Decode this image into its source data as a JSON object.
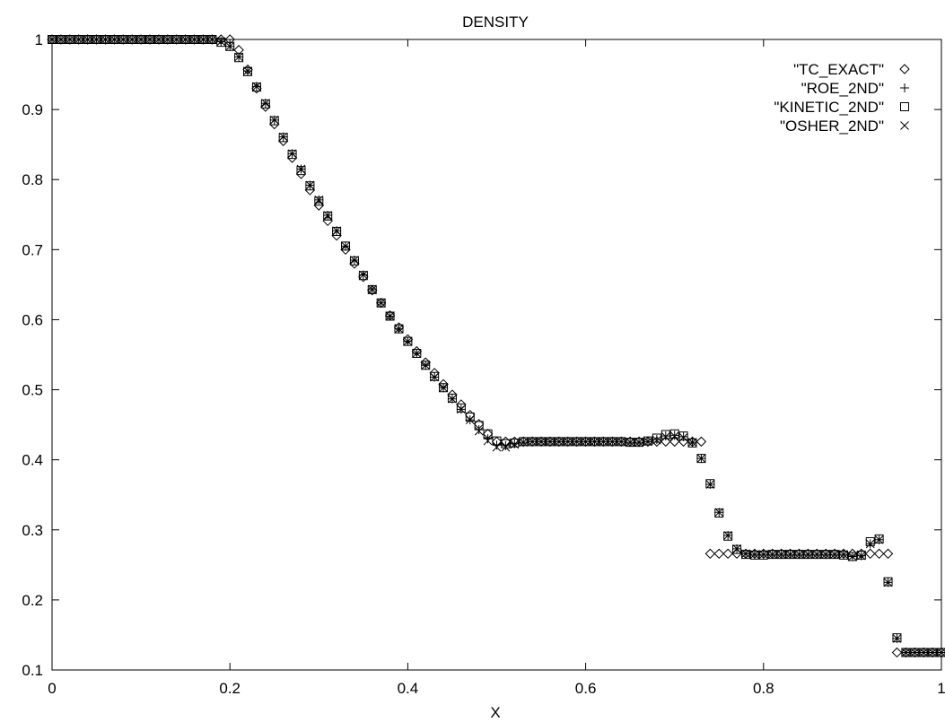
{
  "chart_data": {
    "type": "scatter",
    "title": "DENSITY",
    "xlabel": "X",
    "ylabel": "",
    "xlim": [
      0,
      1
    ],
    "ylim": [
      0.1,
      1
    ],
    "xticks": [
      "0",
      "0.2",
      "0.4",
      "0.6",
      "0.8",
      "1"
    ],
    "yticks": [
      "0.1",
      "0.2",
      "0.3",
      "0.4",
      "0.5",
      "0.6",
      "0.7",
      "0.8",
      "0.9",
      "1"
    ],
    "legend_position": "top-right",
    "grid": false,
    "series": [
      {
        "name": "\"TC_EXACT\"",
        "marker": "diamond",
        "x": [
          0.0,
          0.01,
          0.02,
          0.03,
          0.04,
          0.05,
          0.06,
          0.07,
          0.08,
          0.09,
          0.1,
          0.11,
          0.12,
          0.13,
          0.14,
          0.15,
          0.16,
          0.17,
          0.18,
          0.19,
          0.2,
          0.21,
          0.22,
          0.23,
          0.24,
          0.25,
          0.26,
          0.27,
          0.28,
          0.29,
          0.3,
          0.31,
          0.32,
          0.33,
          0.34,
          0.35,
          0.36,
          0.37,
          0.38,
          0.39,
          0.4,
          0.41,
          0.42,
          0.43,
          0.44,
          0.45,
          0.46,
          0.47,
          0.48,
          0.49,
          0.5,
          0.51,
          0.52,
          0.53,
          0.54,
          0.55,
          0.56,
          0.57,
          0.58,
          0.59,
          0.6,
          0.61,
          0.62,
          0.63,
          0.64,
          0.65,
          0.66,
          0.67,
          0.68,
          0.69,
          0.7,
          0.71,
          0.72,
          0.73,
          0.74,
          0.75,
          0.76,
          0.77,
          0.78,
          0.79,
          0.8,
          0.81,
          0.82,
          0.83,
          0.84,
          0.85,
          0.86,
          0.87,
          0.88,
          0.89,
          0.9,
          0.91,
          0.92,
          0.93,
          0.94,
          0.95,
          0.96,
          0.97,
          0.98,
          0.99,
          1.0
        ],
        "y": [
          1,
          1,
          1,
          1,
          1,
          1,
          1,
          1,
          1,
          1,
          1,
          1,
          1,
          1,
          1,
          1,
          1,
          1,
          1,
          1,
          1,
          0.985,
          0.957,
          0.93,
          0.904,
          0.879,
          0.855,
          0.831,
          0.808,
          0.785,
          0.763,
          0.741,
          0.72,
          0.7,
          0.68,
          0.661,
          0.642,
          0.624,
          0.606,
          0.589,
          0.572,
          0.555,
          0.539,
          0.524,
          0.508,
          0.493,
          0.479,
          0.464,
          0.451,
          0.437,
          0.426,
          0.426,
          0.426,
          0.426,
          0.426,
          0.426,
          0.426,
          0.426,
          0.426,
          0.426,
          0.426,
          0.426,
          0.426,
          0.426,
          0.426,
          0.426,
          0.426,
          0.426,
          0.426,
          0.426,
          0.426,
          0.426,
          0.426,
          0.426,
          0.266,
          0.266,
          0.266,
          0.266,
          0.266,
          0.266,
          0.266,
          0.266,
          0.266,
          0.266,
          0.266,
          0.266,
          0.266,
          0.266,
          0.266,
          0.266,
          0.266,
          0.266,
          0.266,
          0.266,
          0.266,
          0.125,
          0.125,
          0.125,
          0.125,
          0.125,
          0.125
        ]
      },
      {
        "name": "\"ROE_2ND\"",
        "marker": "plus",
        "x": [
          0.0,
          0.01,
          0.02,
          0.03,
          0.04,
          0.05,
          0.06,
          0.07,
          0.08,
          0.09,
          0.1,
          0.11,
          0.12,
          0.13,
          0.14,
          0.15,
          0.16,
          0.17,
          0.18,
          0.19,
          0.2,
          0.21,
          0.22,
          0.23,
          0.24,
          0.25,
          0.26,
          0.27,
          0.28,
          0.29,
          0.3,
          0.31,
          0.32,
          0.33,
          0.34,
          0.35,
          0.36,
          0.37,
          0.38,
          0.39,
          0.4,
          0.41,
          0.42,
          0.43,
          0.44,
          0.45,
          0.46,
          0.47,
          0.48,
          0.49,
          0.5,
          0.51,
          0.52,
          0.53,
          0.54,
          0.55,
          0.56,
          0.57,
          0.58,
          0.59,
          0.6,
          0.61,
          0.62,
          0.63,
          0.64,
          0.65,
          0.66,
          0.67,
          0.68,
          0.69,
          0.7,
          0.71,
          0.72,
          0.73,
          0.74,
          0.75,
          0.76,
          0.77,
          0.78,
          0.79,
          0.8,
          0.81,
          0.82,
          0.83,
          0.84,
          0.85,
          0.86,
          0.87,
          0.88,
          0.89,
          0.9,
          0.91,
          0.92,
          0.93,
          0.94,
          0.95,
          0.96,
          0.97,
          0.98,
          0.99,
          1.0
        ],
        "y": [
          1,
          1,
          1,
          1,
          1,
          1,
          1,
          1,
          1,
          1,
          1,
          1,
          1,
          1,
          1,
          1,
          1,
          1,
          1,
          0.997,
          0.99,
          0.975,
          0.955,
          0.933,
          0.909,
          0.885,
          0.861,
          0.837,
          0.815,
          0.792,
          0.771,
          0.749,
          0.727,
          0.705,
          0.685,
          0.664,
          0.643,
          0.624,
          0.605,
          0.587,
          0.569,
          0.552,
          0.535,
          0.518,
          0.503,
          0.487,
          0.472,
          0.457,
          0.443,
          0.43,
          0.421,
          0.42,
          0.423,
          0.425,
          0.426,
          0.426,
          0.426,
          0.426,
          0.426,
          0.426,
          0.426,
          0.426,
          0.426,
          0.426,
          0.426,
          0.425,
          0.425,
          0.426,
          0.429,
          0.434,
          0.435,
          0.433,
          0.425,
          0.402,
          0.365,
          0.325,
          0.292,
          0.273,
          0.266,
          0.265,
          0.265,
          0.265,
          0.265,
          0.265,
          0.265,
          0.265,
          0.265,
          0.265,
          0.265,
          0.265,
          0.262,
          0.263,
          0.28,
          0.286,
          0.225,
          0.145,
          0.125,
          0.125,
          0.125,
          0.125,
          0.125
        ]
      },
      {
        "name": "\"KINETIC_2ND\"",
        "marker": "square",
        "x": [
          0.0,
          0.01,
          0.02,
          0.03,
          0.04,
          0.05,
          0.06,
          0.07,
          0.08,
          0.09,
          0.1,
          0.11,
          0.12,
          0.13,
          0.14,
          0.15,
          0.16,
          0.17,
          0.18,
          0.19,
          0.2,
          0.21,
          0.22,
          0.23,
          0.24,
          0.25,
          0.26,
          0.27,
          0.28,
          0.29,
          0.3,
          0.31,
          0.32,
          0.33,
          0.34,
          0.35,
          0.36,
          0.37,
          0.38,
          0.39,
          0.4,
          0.41,
          0.42,
          0.43,
          0.44,
          0.45,
          0.46,
          0.47,
          0.48,
          0.49,
          0.5,
          0.51,
          0.52,
          0.53,
          0.54,
          0.55,
          0.56,
          0.57,
          0.58,
          0.59,
          0.6,
          0.61,
          0.62,
          0.63,
          0.64,
          0.65,
          0.66,
          0.67,
          0.68,
          0.69,
          0.7,
          0.71,
          0.72,
          0.73,
          0.74,
          0.75,
          0.76,
          0.77,
          0.78,
          0.79,
          0.8,
          0.81,
          0.82,
          0.83,
          0.84,
          0.85,
          0.86,
          0.87,
          0.88,
          0.89,
          0.9,
          0.91,
          0.92,
          0.93,
          0.94,
          0.95,
          0.96,
          0.97,
          0.98,
          0.99,
          1.0
        ],
        "y": [
          1,
          1,
          1,
          1,
          1,
          1,
          1,
          1,
          1,
          1,
          1,
          1,
          1,
          1,
          1,
          1,
          1,
          1,
          1,
          0.996,
          0.99,
          0.974,
          0.954,
          0.932,
          0.908,
          0.884,
          0.86,
          0.836,
          0.813,
          0.791,
          0.769,
          0.748,
          0.726,
          0.705,
          0.684,
          0.663,
          0.643,
          0.624,
          0.605,
          0.587,
          0.569,
          0.552,
          0.535,
          0.519,
          0.503,
          0.488,
          0.474,
          0.461,
          0.449,
          0.437,
          0.427,
          0.423,
          0.424,
          0.426,
          0.426,
          0.426,
          0.426,
          0.426,
          0.426,
          0.426,
          0.426,
          0.426,
          0.426,
          0.426,
          0.426,
          0.425,
          0.425,
          0.427,
          0.431,
          0.436,
          0.437,
          0.434,
          0.424,
          0.402,
          0.366,
          0.324,
          0.291,
          0.272,
          0.265,
          0.264,
          0.264,
          0.265,
          0.265,
          0.265,
          0.265,
          0.265,
          0.265,
          0.265,
          0.265,
          0.264,
          0.262,
          0.264,
          0.283,
          0.287,
          0.226,
          0.146,
          0.125,
          0.125,
          0.125,
          0.125,
          0.125
        ]
      },
      {
        "name": "\"OSHER_2ND\"",
        "marker": "cross",
        "x": [
          0.0,
          0.01,
          0.02,
          0.03,
          0.04,
          0.05,
          0.06,
          0.07,
          0.08,
          0.09,
          0.1,
          0.11,
          0.12,
          0.13,
          0.14,
          0.15,
          0.16,
          0.17,
          0.18,
          0.19,
          0.2,
          0.21,
          0.22,
          0.23,
          0.24,
          0.25,
          0.26,
          0.27,
          0.28,
          0.29,
          0.3,
          0.31,
          0.32,
          0.33,
          0.34,
          0.35,
          0.36,
          0.37,
          0.38,
          0.39,
          0.4,
          0.41,
          0.42,
          0.43,
          0.44,
          0.45,
          0.46,
          0.47,
          0.48,
          0.49,
          0.5,
          0.51,
          0.52,
          0.53,
          0.54,
          0.55,
          0.56,
          0.57,
          0.58,
          0.59,
          0.6,
          0.61,
          0.62,
          0.63,
          0.64,
          0.65,
          0.66,
          0.67,
          0.68,
          0.69,
          0.7,
          0.71,
          0.72,
          0.73,
          0.74,
          0.75,
          0.76,
          0.77,
          0.78,
          0.79,
          0.8,
          0.81,
          0.82,
          0.83,
          0.84,
          0.85,
          0.86,
          0.87,
          0.88,
          0.89,
          0.9,
          0.91,
          0.92,
          0.93,
          0.94,
          0.95,
          0.96,
          0.97,
          0.98,
          0.99,
          1.0
        ],
        "y": [
          1,
          1,
          1,
          1,
          1,
          1,
          1,
          1,
          1,
          1,
          1,
          1,
          1,
          1,
          1,
          1,
          1,
          1,
          1,
          0.997,
          0.99,
          0.975,
          0.955,
          0.933,
          0.909,
          0.885,
          0.861,
          0.837,
          0.815,
          0.792,
          0.771,
          0.749,
          0.727,
          0.705,
          0.685,
          0.664,
          0.643,
          0.624,
          0.605,
          0.587,
          0.569,
          0.552,
          0.535,
          0.518,
          0.503,
          0.487,
          0.472,
          0.457,
          0.441,
          0.427,
          0.418,
          0.418,
          0.422,
          0.425,
          0.426,
          0.426,
          0.426,
          0.426,
          0.426,
          0.426,
          0.426,
          0.426,
          0.426,
          0.426,
          0.426,
          0.425,
          0.425,
          0.426,
          0.428,
          0.433,
          0.434,
          0.432,
          0.425,
          0.402,
          0.365,
          0.325,
          0.292,
          0.273,
          0.266,
          0.265,
          0.265,
          0.265,
          0.265,
          0.265,
          0.265,
          0.265,
          0.265,
          0.265,
          0.265,
          0.265,
          0.262,
          0.263,
          0.28,
          0.286,
          0.225,
          0.145,
          0.125,
          0.125,
          0.125,
          0.125,
          0.125
        ]
      }
    ]
  }
}
